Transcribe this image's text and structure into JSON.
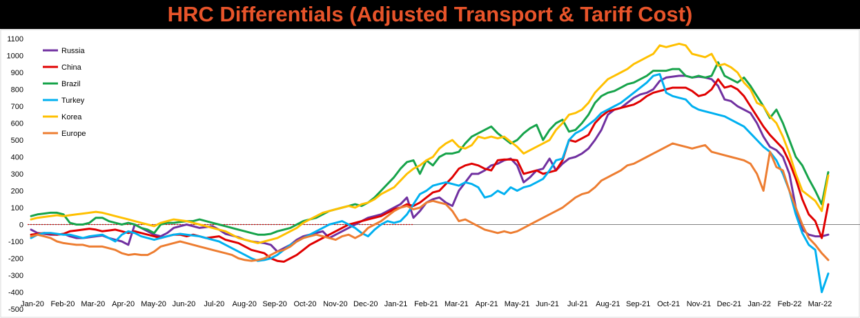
{
  "chart_data": {
    "type": "line",
    "title": "HRC Differentials (Adjusted Transport & Tariff Cost)",
    "ylim": [
      -500,
      1100
    ],
    "yticks": [
      -500,
      -400,
      -300,
      -200,
      -100,
      0,
      100,
      200,
      300,
      400,
      500,
      600,
      700,
      800,
      900,
      1000,
      1100
    ],
    "ytick_labels": [
      "-500",
      "-400",
      "-300",
      "-200",
      "-100",
      "0",
      "100",
      "200",
      "300",
      "400",
      "500",
      "600",
      "700",
      "800",
      "900",
      "1000",
      "1100"
    ],
    "x_labels": [
      "Jan-20",
      "Feb-20",
      "Mar-20",
      "Apr-20",
      "May-20",
      "Jun-20",
      "Jul-20",
      "Aug-20",
      "Sep-20",
      "Oct-20",
      "Nov-20",
      "Dec-20",
      "Jan-21",
      "Feb-21",
      "Mar-21",
      "Apr-21",
      "May-21",
      "Jun-21",
      "Jul-21",
      "Aug-21",
      "Sep-21",
      "Oct-21",
      "Nov-21",
      "Dec-21",
      "Jan-22",
      "Feb-22",
      "Mar-22"
    ],
    "legend_position": "top-left",
    "grid": false,
    "zero_line": {
      "style": "dotted",
      "color": "#cc0000"
    },
    "series": [
      {
        "name": "Russia",
        "color": "#7030a0",
        "values": [
          -30,
          -50,
          -55,
          -60,
          -60,
          -55,
          -70,
          -80,
          -80,
          -75,
          -70,
          -65,
          -80,
          -90,
          -100,
          -120,
          0,
          -20,
          -40,
          -60,
          -70,
          -50,
          -20,
          -10,
          0,
          -10,
          -20,
          -15,
          -10,
          -30,
          -55,
          -65,
          -75,
          -90,
          -100,
          -105,
          -110,
          -120,
          -160,
          -140,
          -120,
          -90,
          -70,
          -60,
          -50,
          -40,
          -80,
          -60,
          -40,
          -20,
          0,
          20,
          40,
          50,
          60,
          80,
          100,
          120,
          160,
          40,
          80,
          130,
          150,
          160,
          130,
          110,
          200,
          250,
          300,
          300,
          320,
          350,
          360,
          380,
          390,
          350,
          250,
          280,
          320,
          330,
          390,
          320,
          360,
          390,
          400,
          420,
          450,
          500,
          560,
          650,
          680,
          690,
          720,
          750,
          770,
          780,
          800,
          850,
          870,
          875,
          880,
          880,
          870,
          875,
          870,
          860,
          820,
          740,
          730,
          700,
          680,
          660,
          600,
          520,
          460,
          440,
          400,
          300,
          100,
          -30,
          -60,
          -70,
          -70,
          -60
        ]
      },
      {
        "name": "China",
        "color": "#e00000",
        "values": [
          -60,
          -55,
          -50,
          -55,
          -60,
          -55,
          -40,
          -35,
          -30,
          -25,
          -30,
          -40,
          -35,
          -30,
          -40,
          -50,
          -40,
          -50,
          -60,
          -70,
          -80,
          -70,
          -60,
          -60,
          -70,
          -60,
          -70,
          -80,
          -75,
          -70,
          -90,
          -100,
          -110,
          -130,
          -150,
          -160,
          -170,
          -200,
          -215,
          -220,
          -200,
          -180,
          -150,
          -120,
          -100,
          -80,
          -60,
          -40,
          -20,
          0,
          10,
          20,
          30,
          40,
          50,
          70,
          90,
          100,
          120,
          110,
          130,
          160,
          190,
          200,
          240,
          280,
          330,
          350,
          360,
          350,
          330,
          320,
          380,
          385,
          385,
          380,
          300,
          310,
          320,
          300,
          310,
          320,
          380,
          500,
          490,
          510,
          530,
          600,
          640,
          670,
          680,
          690,
          700,
          710,
          730,
          760,
          780,
          790,
          800,
          810,
          810,
          810,
          790,
          760,
          770,
          800,
          860,
          810,
          820,
          800,
          760,
          700,
          640,
          580,
          530,
          490,
          450,
          370,
          270,
          150,
          60,
          20,
          -80,
          120
        ]
      },
      {
        "name": "Brazil",
        "color": "#16a34a",
        "values": [
          50,
          60,
          65,
          70,
          70,
          60,
          10,
          0,
          0,
          10,
          40,
          40,
          20,
          10,
          0,
          10,
          0,
          -20,
          -30,
          -50,
          0,
          10,
          10,
          15,
          20,
          20,
          30,
          20,
          10,
          0,
          -10,
          -20,
          -30,
          -40,
          -50,
          -60,
          -60,
          -55,
          -40,
          -30,
          -20,
          0,
          20,
          30,
          40,
          60,
          80,
          90,
          100,
          110,
          120,
          110,
          130,
          160,
          200,
          240,
          280,
          330,
          370,
          380,
          300,
          380,
          350,
          400,
          420,
          420,
          430,
          480,
          520,
          540,
          560,
          580,
          540,
          510,
          480,
          500,
          540,
          570,
          590,
          500,
          560,
          600,
          620,
          550,
          560,
          600,
          650,
          720,
          760,
          780,
          790,
          810,
          830,
          840,
          860,
          880,
          910,
          910,
          910,
          920,
          920,
          880,
          870,
          880,
          870,
          880,
          960,
          880,
          860,
          840,
          870,
          820,
          760,
          700,
          630,
          680,
          600,
          500,
          400,
          350,
          270,
          200,
          120,
          310
        ]
      },
      {
        "name": "Turkey",
        "color": "#00b0f0",
        "values": [
          -80,
          -60,
          -50,
          -50,
          -55,
          -60,
          -60,
          -70,
          -80,
          -70,
          -65,
          -60,
          -80,
          -100,
          -60,
          -40,
          -50,
          -70,
          -80,
          -90,
          -80,
          -70,
          -60,
          -55,
          -60,
          -65,
          -70,
          -80,
          -90,
          -100,
          -120,
          -140,
          -160,
          -180,
          -200,
          -215,
          -210,
          -200,
          -180,
          -150,
          -120,
          -100,
          -80,
          -60,
          -40,
          -20,
          0,
          10,
          20,
          0,
          -20,
          -50,
          -70,
          -30,
          0,
          20,
          10,
          20,
          60,
          120,
          180,
          200,
          230,
          240,
          250,
          240,
          230,
          250,
          240,
          220,
          160,
          170,
          200,
          180,
          220,
          200,
          220,
          230,
          250,
          270,
          320,
          380,
          390,
          500,
          540,
          560,
          590,
          620,
          660,
          680,
          700,
          720,
          750,
          780,
          810,
          840,
          880,
          890,
          780,
          760,
          750,
          740,
          700,
          680,
          670,
          660,
          650,
          640,
          620,
          600,
          580,
          540,
          500,
          460,
          430,
          380,
          300,
          200,
          60,
          -50,
          -120,
          -150,
          -400,
          -290
        ]
      },
      {
        "name": "Korea",
        "color": "#ffc000",
        "values": [
          30,
          40,
          45,
          50,
          55,
          50,
          55,
          60,
          65,
          70,
          75,
          70,
          60,
          50,
          40,
          30,
          20,
          10,
          0,
          -10,
          10,
          20,
          30,
          25,
          20,
          10,
          0,
          -10,
          -20,
          -30,
          -40,
          -60,
          -80,
          -90,
          -100,
          -110,
          -100,
          -90,
          -80,
          -60,
          -40,
          -20,
          10,
          30,
          50,
          70,
          80,
          90,
          100,
          110,
          100,
          120,
          130,
          150,
          180,
          200,
          220,
          260,
          300,
          330,
          350,
          380,
          400,
          450,
          480,
          500,
          460,
          450,
          470,
          520,
          510,
          520,
          510,
          520,
          490,
          460,
          420,
          440,
          460,
          480,
          500,
          560,
          600,
          650,
          660,
          680,
          720,
          780,
          820,
          860,
          880,
          900,
          920,
          950,
          970,
          990,
          1010,
          1060,
          1050,
          1060,
          1070,
          1060,
          1010,
          1000,
          990,
          1010,
          940,
          950,
          930,
          900,
          840,
          800,
          720,
          700,
          640,
          600,
          520,
          420,
          300,
          200,
          170,
          140,
          80,
          290
        ]
      },
      {
        "name": "Europe",
        "color": "#ed7d31",
        "values": [
          -70,
          -60,
          -70,
          -80,
          -100,
          -110,
          -115,
          -120,
          -120,
          -130,
          -130,
          -130,
          -140,
          -150,
          -170,
          -180,
          -175,
          -180,
          -180,
          -160,
          -130,
          -120,
          -110,
          -100,
          -110,
          -120,
          -130,
          -140,
          -150,
          -160,
          -170,
          -180,
          -200,
          -210,
          -215,
          -210,
          -200,
          -180,
          -160,
          -150,
          -130,
          -100,
          -80,
          -70,
          -60,
          -70,
          -80,
          -90,
          -70,
          -60,
          -80,
          -60,
          -20,
          0,
          20,
          50,
          80,
          100,
          110,
          90,
          100,
          130,
          140,
          130,
          120,
          80,
          20,
          30,
          10,
          -10,
          -30,
          -40,
          -50,
          -40,
          -50,
          -40,
          -20,
          0,
          20,
          40,
          60,
          80,
          100,
          130,
          160,
          180,
          190,
          220,
          260,
          280,
          300,
          320,
          350,
          360,
          380,
          400,
          420,
          440,
          460,
          480,
          470,
          460,
          450,
          460,
          470,
          430,
          420,
          410,
          400,
          390,
          380,
          360,
          300,
          200,
          430,
          340,
          320,
          200,
          100,
          0,
          -80,
          -120,
          -170,
          -210
        ]
      }
    ]
  }
}
